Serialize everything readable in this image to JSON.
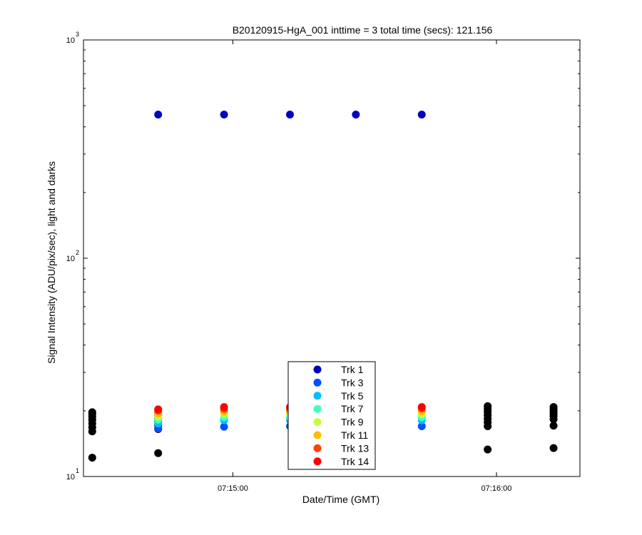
{
  "chart_data": {
    "type": "scatter",
    "title": "B20120915-HgA_001 inttime = 3 total time (secs): 121.156",
    "xlabel": "Date/Time (GMT)",
    "ylabel": "Signal Intensity (ADU/pix/sec), light and darks",
    "y_scale": "log",
    "ylim": [
      10,
      1000
    ],
    "xlim": [
      "07:14:26",
      "07:16:19"
    ],
    "x_ticks": [
      {
        "value": "07:15:00",
        "label": "07:15:00"
      },
      {
        "value": "07:16:00",
        "label": "07:16:00"
      }
    ],
    "y_ticks": [
      {
        "value": 10,
        "base": "10",
        "exp": "1"
      },
      {
        "value": 100,
        "base": "10",
        "exp": "2"
      },
      {
        "value": 1000,
        "base": "10",
        "exp": "3"
      }
    ],
    "grid": false,
    "legend_position": "bottom-center",
    "series": [
      {
        "name": "Trk 1",
        "color": "#0000bf",
        "points": [
          {
            "x": "07:14:43",
            "y": 455
          },
          {
            "x": "07:14:58",
            "y": 455
          },
          {
            "x": "07:15:13",
            "y": 455
          },
          {
            "x": "07:15:28",
            "y": 455
          },
          {
            "x": "07:15:43",
            "y": 455
          }
        ]
      },
      {
        "name": "Trk 3",
        "color": "#0050ff",
        "points": [
          {
            "x": "07:14:43",
            "y": 16.6
          },
          {
            "x": "07:14:58",
            "y": 16.9
          },
          {
            "x": "07:15:13",
            "y": 17.0
          },
          {
            "x": "07:15:28",
            "y": 17.1
          },
          {
            "x": "07:15:43",
            "y": 17.0
          }
        ]
      },
      {
        "name": "Trk 5",
        "color": "#00bfff",
        "points": [
          {
            "x": "07:14:43",
            "y": 17.5
          },
          {
            "x": "07:14:58",
            "y": 18.1
          },
          {
            "x": "07:15:13",
            "y": 18.1
          },
          {
            "x": "07:15:28",
            "y": 18.2
          },
          {
            "x": "07:15:43",
            "y": 18.1
          }
        ]
      },
      {
        "name": "Trk 7",
        "color": "#40ffbf",
        "points": [
          {
            "x": "07:14:43",
            "y": 18.2
          },
          {
            "x": "07:14:58",
            "y": 18.7
          },
          {
            "x": "07:15:13",
            "y": 18.7
          },
          {
            "x": "07:15:28",
            "y": 18.8
          },
          {
            "x": "07:15:43",
            "y": 18.7
          }
        ]
      },
      {
        "name": "Trk 9",
        "color": "#bfff40",
        "points": [
          {
            "x": "07:14:43",
            "y": 18.8
          },
          {
            "x": "07:14:58",
            "y": 19.3
          },
          {
            "x": "07:15:13",
            "y": 19.3
          },
          {
            "x": "07:15:28",
            "y": 19.4
          },
          {
            "x": "07:15:43",
            "y": 19.3
          }
        ]
      },
      {
        "name": "Trk 11",
        "color": "#ffbf00",
        "points": [
          {
            "x": "07:14:43",
            "y": 19.4
          },
          {
            "x": "07:14:58",
            "y": 19.8
          },
          {
            "x": "07:15:13",
            "y": 19.8
          },
          {
            "x": "07:15:28",
            "y": 20.0
          },
          {
            "x": "07:15:43",
            "y": 19.9
          }
        ]
      },
      {
        "name": "Trk 13",
        "color": "#ff4000",
        "points": [
          {
            "x": "07:14:43",
            "y": 20.0
          },
          {
            "x": "07:14:58",
            "y": 20.4
          },
          {
            "x": "07:15:13",
            "y": 20.4
          },
          {
            "x": "07:15:28",
            "y": 20.6
          },
          {
            "x": "07:15:43",
            "y": 20.5
          }
        ]
      },
      {
        "name": "Trk 14",
        "color": "#ff0000",
        "points": [
          {
            "x": "07:14:43",
            "y": 20.3
          },
          {
            "x": "07:14:58",
            "y": 20.8
          },
          {
            "x": "07:15:13",
            "y": 20.8
          },
          {
            "x": "07:15:28",
            "y": 20.9
          },
          {
            "x": "07:15:43",
            "y": 20.8
          }
        ]
      }
    ],
    "darks": {
      "color": "#000000",
      "points": [
        {
          "x": "07:14:28",
          "y": 12.2
        },
        {
          "x": "07:14:28",
          "y": 16.1
        },
        {
          "x": "07:14:28",
          "y": 16.8
        },
        {
          "x": "07:14:28",
          "y": 17.5
        },
        {
          "x": "07:14:28",
          "y": 18.2
        },
        {
          "x": "07:14:28",
          "y": 18.8
        },
        {
          "x": "07:14:28",
          "y": 19.3
        },
        {
          "x": "07:14:28",
          "y": 19.7
        },
        {
          "x": "07:14:43",
          "y": 12.8
        },
        {
          "x": "07:14:43",
          "y": 16.5
        },
        {
          "x": "07:14:43",
          "y": 17.2
        },
        {
          "x": "07:14:43",
          "y": 17.9
        },
        {
          "x": "07:14:43",
          "y": 18.5
        },
        {
          "x": "07:14:43",
          "y": 19.1
        },
        {
          "x": "07:14:43",
          "y": 19.6
        },
        {
          "x": "07:15:58",
          "y": 13.3
        },
        {
          "x": "07:15:58",
          "y": 17.0
        },
        {
          "x": "07:15:58",
          "y": 17.7
        },
        {
          "x": "07:15:58",
          "y": 18.4
        },
        {
          "x": "07:15:58",
          "y": 19.1
        },
        {
          "x": "07:15:58",
          "y": 19.8
        },
        {
          "x": "07:15:58",
          "y": 20.4
        },
        {
          "x": "07:15:58",
          "y": 21.0
        },
        {
          "x": "07:16:13",
          "y": 13.5
        },
        {
          "x": "07:16:13",
          "y": 17.1
        },
        {
          "x": "07:16:13",
          "y": 18.3
        },
        {
          "x": "07:16:13",
          "y": 18.9
        },
        {
          "x": "07:16:13",
          "y": 19.4
        },
        {
          "x": "07:16:13",
          "y": 19.9
        },
        {
          "x": "07:16:13",
          "y": 20.4
        },
        {
          "x": "07:16:13",
          "y": 20.8
        }
      ]
    }
  }
}
